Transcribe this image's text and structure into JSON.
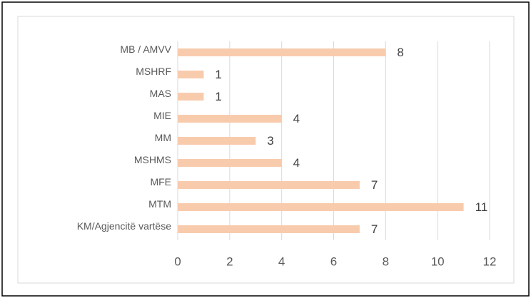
{
  "chart_data": {
    "type": "bar",
    "orientation": "horizontal",
    "categories": [
      "MB / AMVV",
      "MSHRF",
      "MAS",
      "MIE",
      "MM",
      "MSHMS",
      "MFE",
      "MTM",
      "KM/Agjencitë vartëse"
    ],
    "values": [
      8,
      1,
      1,
      4,
      3,
      4,
      7,
      11,
      7
    ],
    "color": "#f8cbad",
    "xlim": [
      0,
      12
    ],
    "xticks": [
      0,
      2,
      4,
      6,
      8,
      10,
      12
    ],
    "grid": true
  }
}
